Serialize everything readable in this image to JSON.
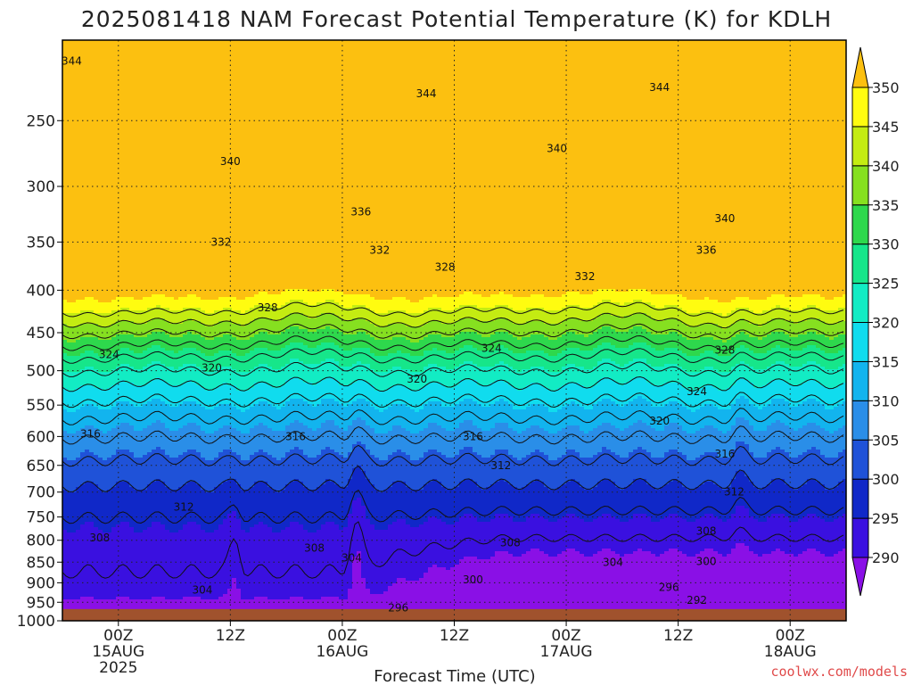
{
  "chart_data": {
    "type": "heatmap",
    "title": "2025081418 NAM Forecast Potential Temperature (K) for KDLH",
    "xlabel": "Forecast Time (UTC)",
    "ylabel": "",
    "y_axis": {
      "scale": "log-pressure",
      "ticks": [
        250,
        300,
        350,
        400,
        450,
        500,
        550,
        600,
        650,
        700,
        750,
        800,
        850,
        900,
        950,
        1000
      ],
      "range": [
        1000,
        200
      ]
    },
    "x_axis": {
      "range_hours": [
        0,
        84
      ],
      "ticks": [
        {
          "label": "00Z",
          "sub1": "15AUG",
          "sub2": "2025",
          "hour": 6
        },
        {
          "label": "12Z",
          "sub1": "",
          "sub2": "",
          "hour": 18
        },
        {
          "label": "00Z",
          "sub1": "16AUG",
          "sub2": "",
          "hour": 30
        },
        {
          "label": "12Z",
          "sub1": "",
          "sub2": "",
          "hour": 42
        },
        {
          "label": "00Z",
          "sub1": "17AUG",
          "sub2": "",
          "hour": 54
        },
        {
          "label": "12Z",
          "sub1": "",
          "sub2": "",
          "hour": 66
        },
        {
          "label": "00Z",
          "sub1": "18AUG",
          "sub2": "",
          "hour": 78
        }
      ]
    },
    "grid": true,
    "colorbar": {
      "levels": [
        290,
        295,
        300,
        305,
        310,
        315,
        320,
        325,
        330,
        335,
        340,
        345,
        350
      ],
      "colors": [
        "#8a10e6",
        "#3a10e0",
        "#1028c8",
        "#1f52d8",
        "#2a8ee8",
        "#12b4ee",
        "#10dcee",
        "#12ecc4",
        "#16e68a",
        "#2ed84c",
        "#86e020",
        "#c4ec12",
        "#fffc10",
        "#fcc010"
      ],
      "extend": "both"
    },
    "contour_levels": [
      292,
      296,
      300,
      304,
      308,
      312,
      316,
      320,
      324,
      328,
      332,
      336,
      340,
      344
    ],
    "contour_labels": [
      {
        "value": 344,
        "hour": 1,
        "p": 212
      },
      {
        "value": 344,
        "hour": 39,
        "p": 232
      },
      {
        "value": 344,
        "hour": 64,
        "p": 228
      },
      {
        "value": 340,
        "hour": 18,
        "p": 280
      },
      {
        "value": 340,
        "hour": 53,
        "p": 270
      },
      {
        "value": 340,
        "hour": 71,
        "p": 328
      },
      {
        "value": 336,
        "hour": 32,
        "p": 322
      },
      {
        "value": 336,
        "hour": 69,
        "p": 358
      },
      {
        "value": 332,
        "hour": 17,
        "p": 350
      },
      {
        "value": 332,
        "hour": 34,
        "p": 358
      },
      {
        "value": 332,
        "hour": 56,
        "p": 385
      },
      {
        "value": 328,
        "hour": 22,
        "p": 420
      },
      {
        "value": 328,
        "hour": 41,
        "p": 375
      },
      {
        "value": 328,
        "hour": 71,
        "p": 472
      },
      {
        "value": 324,
        "hour": 5,
        "p": 478
      },
      {
        "value": 324,
        "hour": 46,
        "p": 470
      },
      {
        "value": 324,
        "hour": 68,
        "p": 530
      },
      {
        "value": 320,
        "hour": 16,
        "p": 496
      },
      {
        "value": 320,
        "hour": 38,
        "p": 512
      },
      {
        "value": 320,
        "hour": 64,
        "p": 575
      },
      {
        "value": 316,
        "hour": 3,
        "p": 596
      },
      {
        "value": 316,
        "hour": 25,
        "p": 600
      },
      {
        "value": 316,
        "hour": 44,
        "p": 600
      },
      {
        "value": 316,
        "hour": 71,
        "p": 630
      },
      {
        "value": 312,
        "hour": 47,
        "p": 650
      },
      {
        "value": 312,
        "hour": 13,
        "p": 730
      },
      {
        "value": 312,
        "hour": 72,
        "p": 700
      },
      {
        "value": 308,
        "hour": 4,
        "p": 795
      },
      {
        "value": 308,
        "hour": 27,
        "p": 818
      },
      {
        "value": 308,
        "hour": 48,
        "p": 805
      },
      {
        "value": 308,
        "hour": 69,
        "p": 780
      },
      {
        "value": 304,
        "hour": 31,
        "p": 840
      },
      {
        "value": 304,
        "hour": 59,
        "p": 850
      },
      {
        "value": 304,
        "hour": 15,
        "p": 918
      },
      {
        "value": 300,
        "hour": 69,
        "p": 848
      },
      {
        "value": 300,
        "hour": 44,
        "p": 892
      },
      {
        "value": 296,
        "hour": 36,
        "p": 965
      },
      {
        "value": 296,
        "hour": 65,
        "p": 912
      },
      {
        "value": 292,
        "hour": 68,
        "p": 945
      }
    ],
    "surface": {
      "p": 968,
      "fill": "#a0522d"
    }
  },
  "credit": "coolwx.com/models"
}
